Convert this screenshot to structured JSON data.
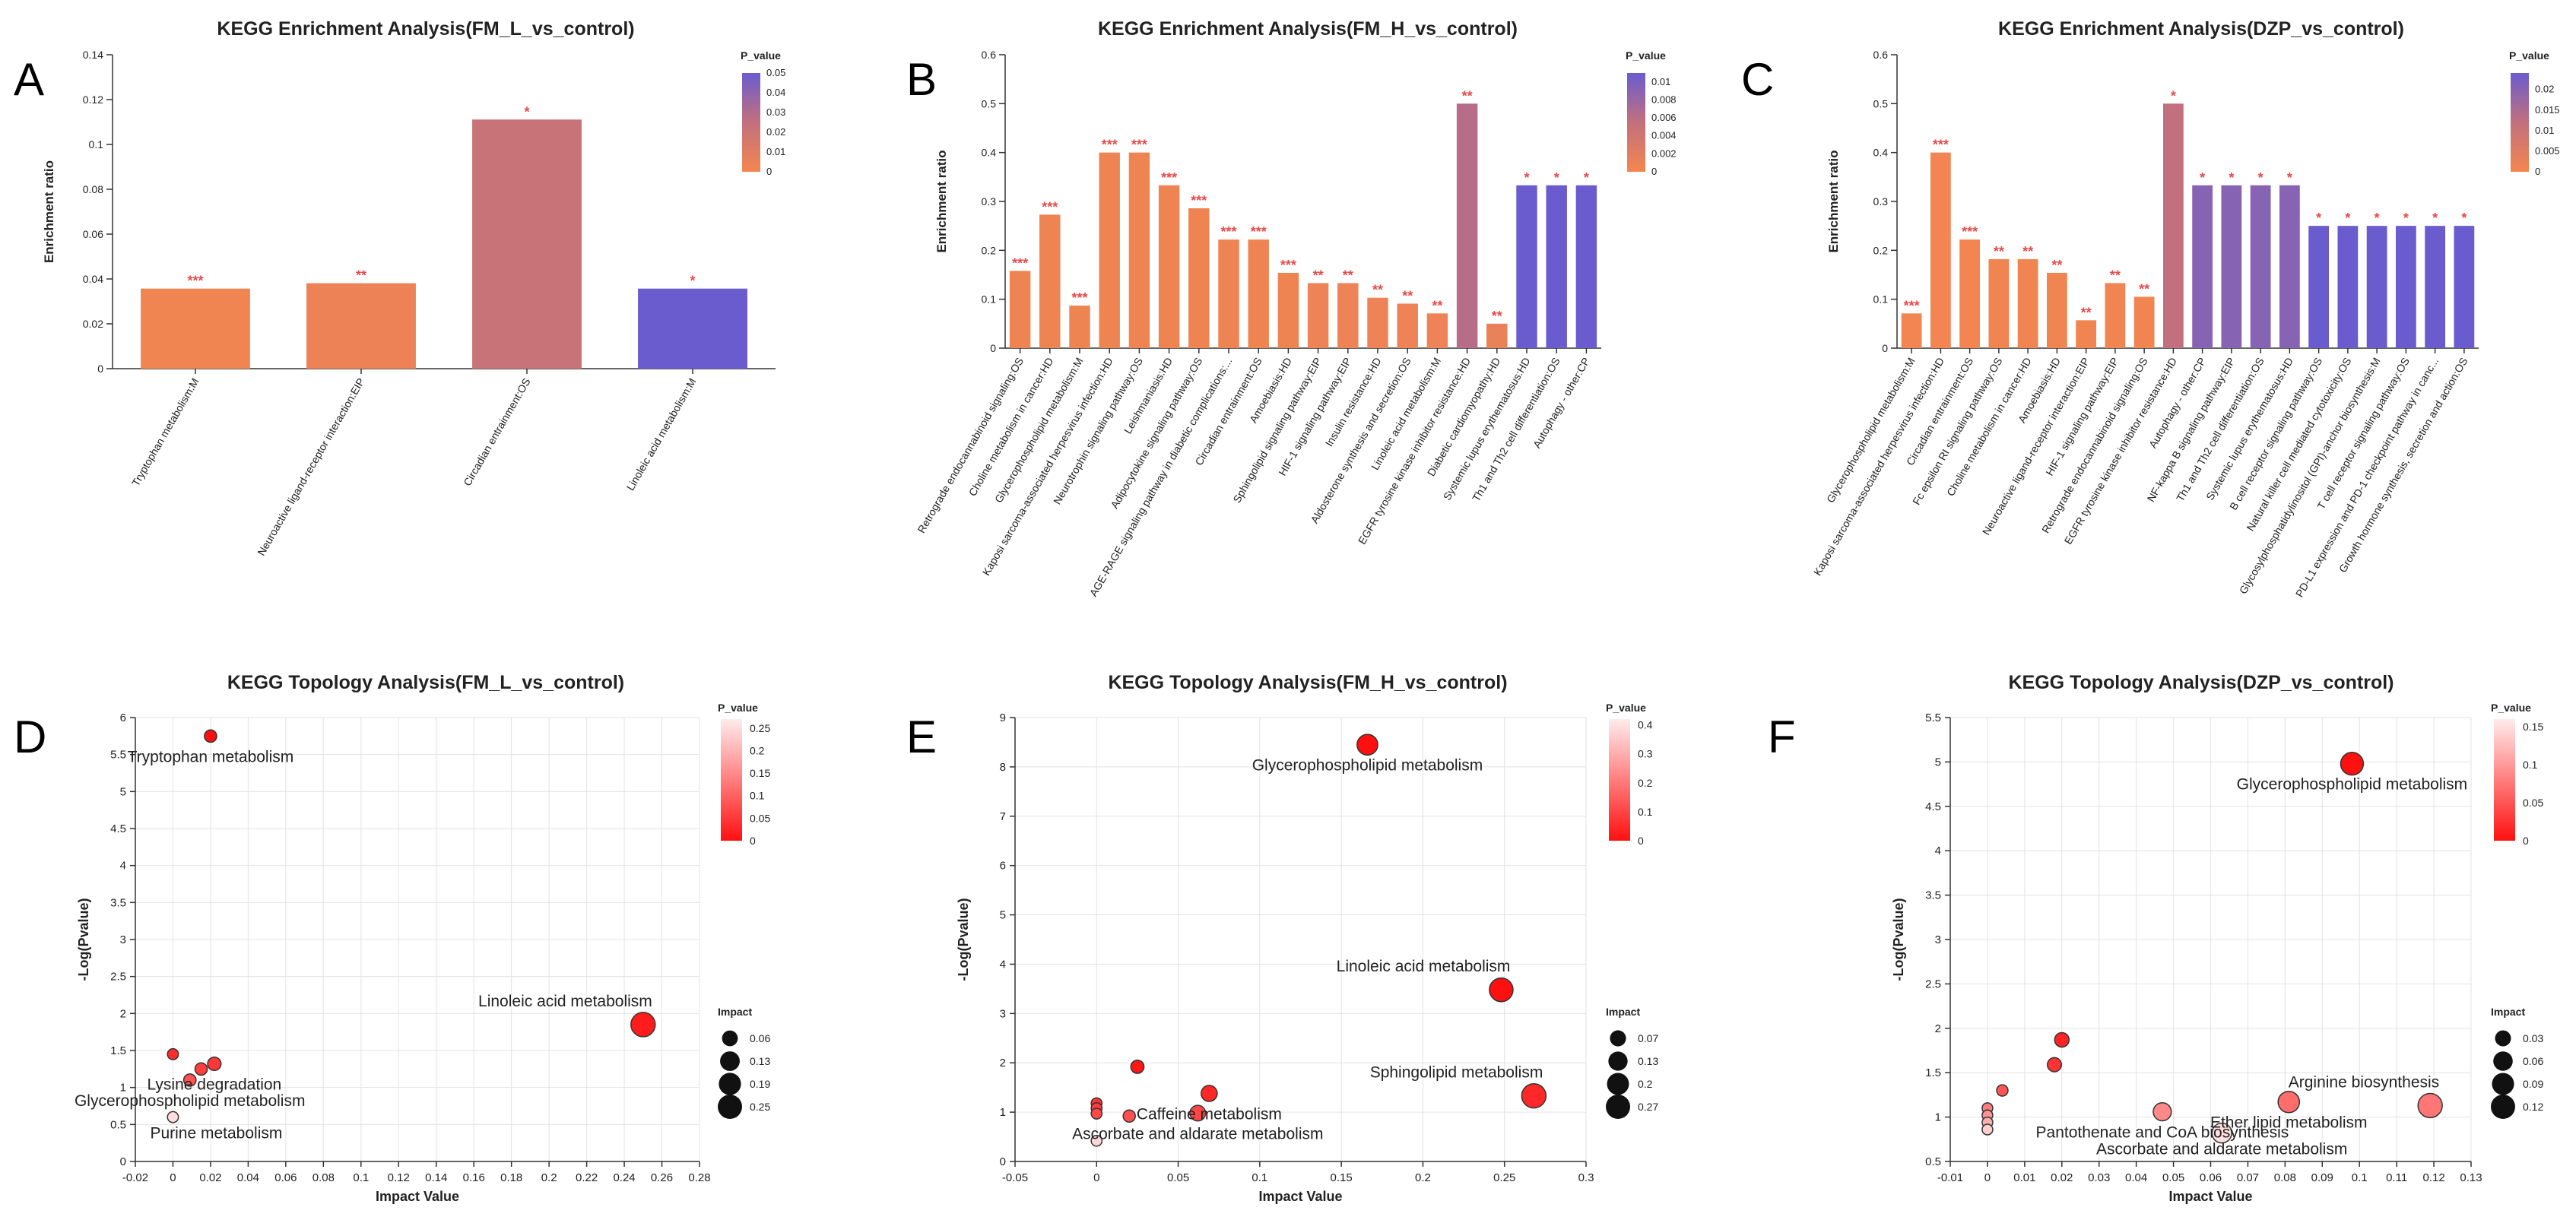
{
  "colors": {
    "pv_low": "#f4864f",
    "pv_mid": "#c2707d",
    "pv_high": "#6a5ccf",
    "topo_low": "#ff1010",
    "topo_high": "#ffffff",
    "grid": "#e3e3e3",
    "star": "#e84a4a"
  },
  "chart_data": [
    {
      "panel": "A",
      "type": "bar",
      "title": "KEGG Enrichment Analysis(FM_L_vs_control)",
      "xlabel": "",
      "ylabel": "Enrichment ratio",
      "ylim": [
        0,
        0.14
      ],
      "yticks": [
        0,
        0.02,
        0.04,
        0.06,
        0.08,
        0.1,
        0.12,
        0.14
      ],
      "legend_title": "P_value",
      "legend_ticks": [
        0,
        0.01,
        0.02,
        0.03,
        0.04,
        0.05
      ],
      "legend_max": 0.05,
      "categories": [
        "Tryptophan metabolism:M",
        "Neuroactive ligand-receptor interaction:EIP",
        "Circadian entrainment:OS",
        "Linoleic acid metabolism:M"
      ],
      "values": [
        0.0357,
        0.0381,
        0.1111,
        0.0357
      ],
      "p_values": [
        0.0015,
        0.004,
        0.022,
        0.05
      ],
      "stars": [
        "***",
        "**",
        "*",
        "*"
      ]
    },
    {
      "panel": "B",
      "type": "bar",
      "title": "KEGG Enrichment Analysis(FM_H_vs_control)",
      "xlabel": "",
      "ylabel": "Enrichment ratio",
      "ylim": [
        0,
        0.6
      ],
      "yticks": [
        0,
        0.1,
        0.2,
        0.3,
        0.4,
        0.5,
        0.6
      ],
      "legend_title": "P_value",
      "legend_ticks": [
        0,
        0.002,
        0.004,
        0.006,
        0.008,
        0.01
      ],
      "legend_max": 0.011,
      "categories": [
        "Retrograde endocannabinoid signaling:OS",
        "Choline metabolism in cancer:HD",
        "Glycerophospholipid metabolism:M",
        "Kaposi sarcoma-associated herpesvirus infection:HD",
        "Neurotrophin signaling pathway:OS",
        "Leishmaniasis:HD",
        "Adipocytokine signaling pathway:OS",
        "AGE-RAGE signaling pathway in diabetic complications:...",
        "Circadian entrainment:OS",
        "Amoebiasis:HD",
        "Sphingolipid signaling pathway:EIP",
        "HIF-1 signaling pathway:EIP",
        "Insulin resistance:HD",
        "Aldosterone synthesis and secretion:OS",
        "Linoleic acid metabolism:M",
        "EGFR tyrosine kinase inhibitor resistance:HD",
        "Diabetic cardiomyopathy:HD",
        "Systemic lupus erythematosus:HD",
        "Th1 and Th2 cell differentiation:OS",
        "Autophagy - other:CP"
      ],
      "values": [
        0.158,
        0.273,
        0.087,
        0.4,
        0.4,
        0.333,
        0.286,
        0.222,
        0.222,
        0.154,
        0.133,
        0.133,
        0.103,
        0.091,
        0.071,
        0.5,
        0.05,
        0.333,
        0.333,
        0.333
      ],
      "p_values": [
        0.0005,
        0.0005,
        0.0005,
        0.0005,
        0.0005,
        0.0005,
        0.0005,
        0.0005,
        0.0005,
        0.0005,
        0.0008,
        0.0008,
        0.0008,
        0.0008,
        0.0008,
        0.0062,
        0.0012,
        0.011,
        0.011,
        0.011
      ],
      "stars": [
        "***",
        "***",
        "***",
        "***",
        "***",
        "***",
        "***",
        "***",
        "***",
        "***",
        "**",
        "**",
        "**",
        "**",
        "**",
        "**",
        "**",
        "*",
        "*",
        "*"
      ]
    },
    {
      "panel": "C",
      "type": "bar",
      "title": "KEGG Enrichment Analysis(DZP_vs_control)",
      "xlabel": "",
      "ylabel": "Enrichment ratio",
      "ylim": [
        0,
        0.6
      ],
      "yticks": [
        0,
        0.1,
        0.2,
        0.3,
        0.4,
        0.5,
        0.6
      ],
      "legend_title": "P_value",
      "legend_ticks": [
        0,
        0.005,
        0.01,
        0.015,
        0.02
      ],
      "legend_max": 0.024,
      "categories": [
        "Glycerophospholipid metabolism:M",
        "Kaposi sarcoma-associated herpesvirus infection:HD",
        "Circadian entrainment:OS",
        "Fc epsilon RI signaling pathway:OS",
        "Choline metabolism in cancer:HD",
        "Amoebiasis:HD",
        "Neuroactive ligand-receptor interaction:EIP",
        "HIF-1 signaling pathway:EIP",
        "Retrograde endocannabinoid signaling:OS",
        "EGFR tyrosine kinase inhibitor resistance:HD",
        "Autophagy - other:CP",
        "NF-kappa B signaling pathway:EIP",
        "Th1 and Th2 cell differentiation:OS",
        "Systemic lupus erythematosus:HD",
        "B cell receptor signaling pathway:OS",
        "Natural killer cell mediated cytotoxicity:OS",
        "Glycosylphosphatidylinositol (GPI)-anchor biosynthesis:M",
        "T cell receptor signaling pathway:OS",
        "PD-L1 expression and PD-1 checkpoint pathway in canc...",
        "Growth hormone synthesis, secretion and action:OS"
      ],
      "values": [
        0.071,
        0.4,
        0.222,
        0.182,
        0.182,
        0.154,
        0.057,
        0.133,
        0.105,
        0.5,
        0.333,
        0.333,
        0.333,
        0.333,
        0.25,
        0.25,
        0.25,
        0.25,
        0.25,
        0.25
      ],
      "p_values": [
        0.0005,
        0.0005,
        0.0005,
        0.0008,
        0.0008,
        0.0008,
        0.0008,
        0.0008,
        0.0008,
        0.012,
        0.02,
        0.02,
        0.02,
        0.02,
        0.024,
        0.024,
        0.024,
        0.024,
        0.024,
        0.024
      ],
      "stars": [
        "***",
        "***",
        "***",
        "**",
        "**",
        "**",
        "**",
        "**",
        "**",
        "*",
        "*",
        "*",
        "*",
        "*",
        "*",
        "*",
        "*",
        "*",
        "*",
        "*"
      ]
    },
    {
      "panel": "D",
      "type": "scatter",
      "title": "KEGG Topology Analysis(FM_L_vs_control)",
      "xlabel": "Impact Value",
      "ylabel": "-Log(Pvalue)",
      "xlim": [
        -0.02,
        0.28
      ],
      "ylim": [
        0,
        6
      ],
      "xticks": [
        -0.02,
        0,
        0.02,
        0.04,
        0.06,
        0.08,
        0.1,
        0.12,
        0.14,
        0.16,
        0.18,
        0.2,
        0.22,
        0.24,
        0.26,
        0.28
      ],
      "yticks": [
        0,
        0.5,
        1,
        1.5,
        2,
        2.5,
        3,
        3.5,
        4,
        4.5,
        5,
        5.5,
        6
      ],
      "legend_title": "P_value",
      "legend_ticks": [
        0,
        0.05,
        0.1,
        0.15,
        0.2,
        0.25
      ],
      "legend_max": 0.27,
      "size_title": "Impact",
      "size_ticks": [
        0.06,
        0.13,
        0.19,
        0.25
      ],
      "points": [
        {
          "x": 0.02,
          "y": 5.75,
          "impact": 0.02,
          "label": "Tryptophan metabolism"
        },
        {
          "x": 0.25,
          "y": 1.85,
          "impact": 0.25,
          "label": "Linoleic acid metabolism"
        },
        {
          "x": 0.022,
          "y": 1.32,
          "impact": 0.03,
          "label": "Lysine degradation"
        },
        {
          "x": 0.015,
          "y": 1.25,
          "impact": 0.02,
          "label": ""
        },
        {
          "x": 0.009,
          "y": 1.1,
          "impact": 0.02,
          "label": "Glycerophospholipid metabolism"
        },
        {
          "x": 0,
          "y": 1.45,
          "impact": 0.01,
          "label": ""
        },
        {
          "x": 0,
          "y": 0.6,
          "impact": 0.01,
          "label": "Purine metabolism"
        }
      ]
    },
    {
      "panel": "E",
      "type": "scatter",
      "title": "KEGG Topology Analysis(FM_H_vs_control)",
      "xlabel": "Impact Value",
      "ylabel": "-Log(Pvalue)",
      "xlim": [
        -0.05,
        0.3
      ],
      "ylim": [
        0,
        9
      ],
      "xticks": [
        -0.05,
        0,
        0.05,
        0.1,
        0.15,
        0.2,
        0.25,
        0.3
      ],
      "yticks": [
        0,
        1,
        2,
        3,
        4,
        5,
        6,
        7,
        8,
        9
      ],
      "legend_title": "P_value",
      "legend_ticks": [
        0,
        0.1,
        0.2,
        0.3,
        0.4
      ],
      "legend_max": 0.42,
      "size_title": "Impact",
      "size_ticks": [
        0.07,
        0.13,
        0.2,
        0.27
      ],
      "points": [
        {
          "x": 0.166,
          "y": 8.45,
          "impact": 0.166,
          "label": "Glycerophospholipid metabolism"
        },
        {
          "x": 0.248,
          "y": 3.48,
          "impact": 0.248,
          "label": "Linoleic acid metabolism"
        },
        {
          "x": 0.268,
          "y": 1.33,
          "impact": 0.268,
          "label": "Sphingolipid metabolism"
        },
        {
          "x": 0.069,
          "y": 1.38,
          "impact": 0.069,
          "label": "Caffeine metabolism"
        },
        {
          "x": 0.062,
          "y": 0.98,
          "impact": 0.062,
          "label": "Ascorbate and aldarate metabolism"
        },
        {
          "x": 0.025,
          "y": 1.92,
          "impact": 0.03,
          "label": ""
        },
        {
          "x": 0.02,
          "y": 0.92,
          "impact": 0.02,
          "label": ""
        },
        {
          "x": 0,
          "y": 1.18,
          "impact": 0.01,
          "label": ""
        },
        {
          "x": 0,
          "y": 1.08,
          "impact": 0.01,
          "label": ""
        },
        {
          "x": 0,
          "y": 0.97,
          "impact": 0.01,
          "label": ""
        },
        {
          "x": 0,
          "y": 0.42,
          "impact": 0.01,
          "label": ""
        }
      ]
    },
    {
      "panel": "F",
      "type": "scatter",
      "title": "KEGG Topology Analysis(DZP_vs_control)",
      "xlabel": "Impact Value",
      "ylabel": "-Log(Pvalue)",
      "xlim": [
        -0.01,
        0.13
      ],
      "ylim": [
        0.5,
        5.5
      ],
      "xticks": [
        -0.01,
        0,
        0.01,
        0.02,
        0.03,
        0.04,
        0.05,
        0.06,
        0.07,
        0.08,
        0.09,
        0.1,
        0.11,
        0.12,
        0.13
      ],
      "yticks": [
        0.5,
        1,
        1.5,
        2,
        2.5,
        3,
        3.5,
        4,
        4.5,
        5,
        5.5
      ],
      "legend_title": "P_value",
      "legend_ticks": [
        0,
        0.05,
        0.1,
        0.15
      ],
      "legend_max": 0.16,
      "size_title": "Impact",
      "size_ticks": [
        0.03,
        0.06,
        0.09,
        0.12
      ],
      "points": [
        {
          "x": 0.098,
          "y": 4.98,
          "impact": 0.098,
          "label": "Glycerophospholipid metabolism"
        },
        {
          "x": 0.119,
          "y": 1.13,
          "impact": 0.119,
          "label": "Arginine biosynthesis"
        },
        {
          "x": 0.081,
          "y": 1.17,
          "impact": 0.081,
          "label": "Ether lipid metabolism"
        },
        {
          "x": 0.047,
          "y": 1.06,
          "impact": 0.047,
          "label": "Pantothenate and CoA biosynthesis"
        },
        {
          "x": 0.063,
          "y": 0.82,
          "impact": 0.063,
          "label": "Ascorbate and aldarate metabolism"
        },
        {
          "x": 0.02,
          "y": 1.87,
          "impact": 0.02,
          "label": ""
        },
        {
          "x": 0.018,
          "y": 1.59,
          "impact": 0.018,
          "label": ""
        },
        {
          "x": 0.004,
          "y": 1.3,
          "impact": 0.006,
          "label": ""
        },
        {
          "x": 0,
          "y": 1.1,
          "impact": 0.004,
          "label": ""
        },
        {
          "x": 0,
          "y": 1.02,
          "impact": 0.004,
          "label": ""
        },
        {
          "x": 0,
          "y": 0.94,
          "impact": 0.004,
          "label": ""
        },
        {
          "x": 0,
          "y": 0.86,
          "impact": 0.004,
          "label": ""
        }
      ]
    }
  ]
}
